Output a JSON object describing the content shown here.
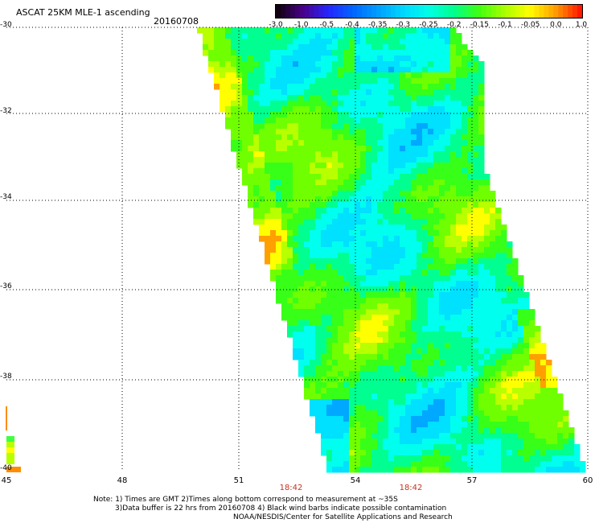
{
  "header": {
    "title": "ASCAT 25KM MLE-1 ascending",
    "date": "20160708"
  },
  "colorbar": {
    "labels": [
      "-3.0",
      "-1.0",
      "-0.5",
      "-0.4",
      "-0.35",
      "-0.3",
      "-0.25",
      "-0.2",
      "-0.15",
      "-0.1",
      "-0.05",
      "0.0",
      "1.0"
    ],
    "colors": [
      "#100010",
      "#4a008c",
      "#2626ff",
      "#0066ff",
      "#00a0ff",
      "#00d8ff",
      "#00ffe6",
      "#00ff8c",
      "#40ff10",
      "#a8ff00",
      "#ffff00",
      "#ffa000",
      "#ff1a00"
    ]
  },
  "map": {
    "y_axis_labels": [
      "-30",
      "-32",
      "-34",
      "-36",
      "-38",
      "-40"
    ],
    "x_axis_labels": [
      "45",
      "48",
      "51",
      "54",
      "57",
      "60"
    ],
    "pass_times": [
      "18:42",
      "18:42"
    ],
    "lat_range": [
      -30,
      -40
    ],
    "lon_range": [
      45,
      60
    ],
    "gridlines": "dotted"
  },
  "footer": {
    "line1": "Note: 1) Times are GMT 2)Times along bottom correspond to measurement at ~35S",
    "line2": "3)Data buffer is 22 hrs from 20160708 4) Black wind barbs indicate possible contamination",
    "line3": "NOAA/NESDIS/Center for Satellite Applications and Research"
  }
}
